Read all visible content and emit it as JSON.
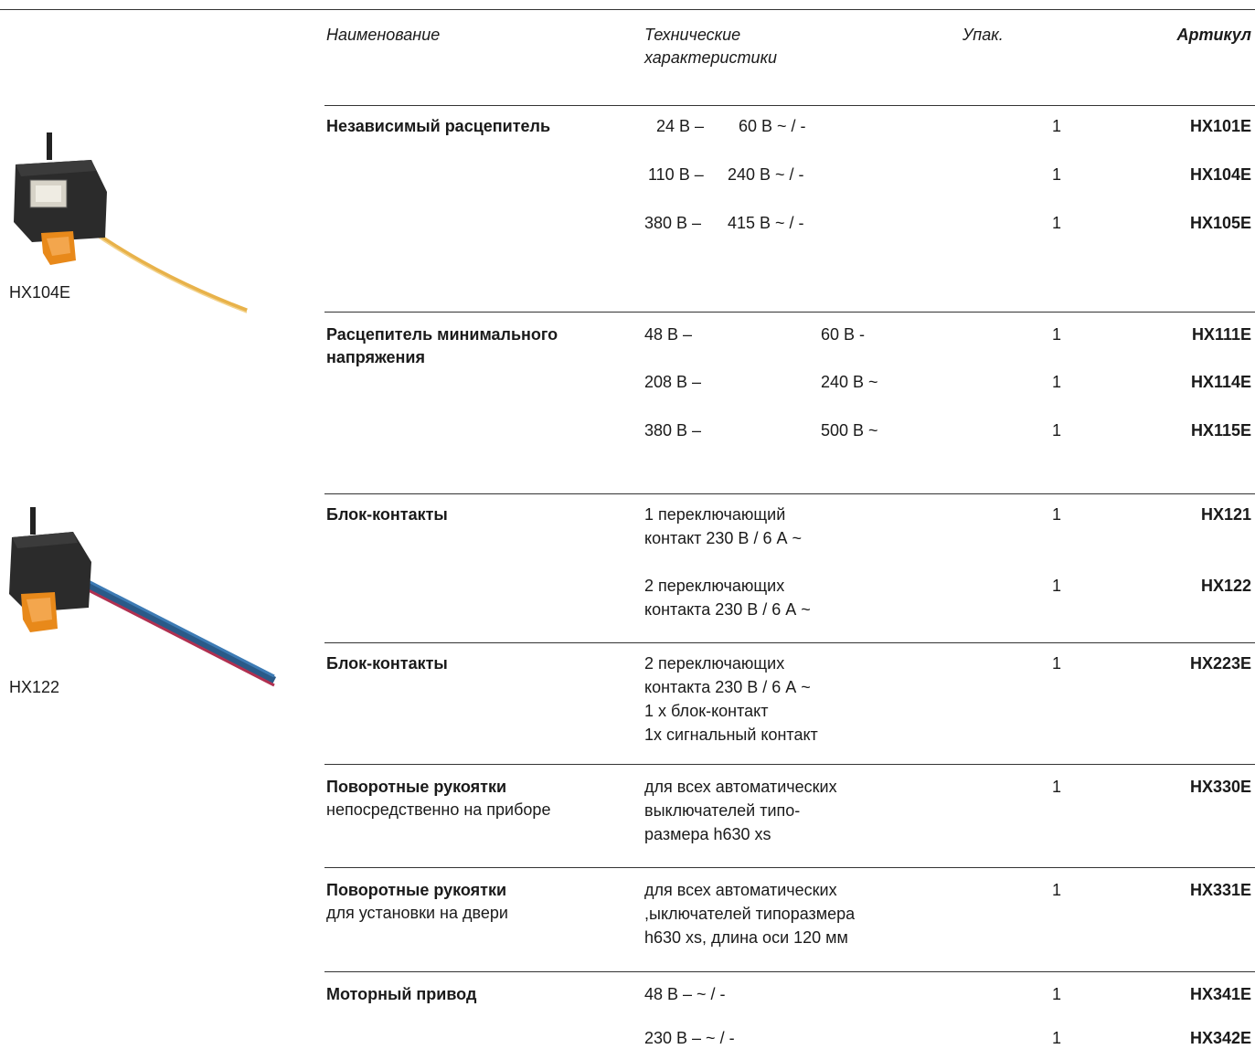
{
  "header": {
    "name": "Наименование",
    "tech_line1": "Технические",
    "tech_line2": "характеристики",
    "pack": "Упак.",
    "article": "Артикул"
  },
  "images": [
    {
      "caption": "HX104E"
    },
    {
      "caption": "HX122"
    }
  ],
  "groups": [
    {
      "name": "Независимый расцепитель",
      "rows": [
        {
          "a": "24 В –",
          "b": "60 В ~ / -",
          "pack": "1",
          "article": "HX101E"
        },
        {
          "a": "110 В –",
          "b": "240 В ~ / -",
          "pack": "1",
          "article": "HX104E"
        },
        {
          "a": "380 В –",
          "b": "415 В ~ / -",
          "pack": "1",
          "article": "HX105E"
        }
      ]
    },
    {
      "name_line1": "Расцепитель минимального",
      "name_line2": "напряжения",
      "rows": [
        {
          "a": "48 В –",
          "b": "60 В  -",
          "pack": "1",
          "article": "HX111E"
        },
        {
          "a": "208 В –",
          "b": "240 В ~",
          "pack": "1",
          "article": "HX114E"
        },
        {
          "a": "380 В –",
          "b": "500 В ~",
          "pack": "1",
          "article": "HX115E"
        }
      ]
    },
    {
      "name": "Блок-контакты",
      "rows": [
        {
          "l1": "1 переключающий",
          "l2": "контакт 230 В / 6 А ~",
          "pack": "1",
          "article": "HX121"
        },
        {
          "l1": "2 переключающих",
          "l2": "контакта 230 В / 6 А ~",
          "pack": "1",
          "article": "HX122"
        }
      ]
    },
    {
      "name": "Блок-контакты",
      "rows": [
        {
          "l1": "2 переключающих",
          "l2": "контакта 230 В / 6 А ~",
          "l3": "1 x блок-контакт",
          "l4": "1x сигнальный контакт",
          "pack": "1",
          "article": "HX223E"
        }
      ]
    },
    {
      "name": "Поворотные рукоятки",
      "sub": "непосредственно на приборе",
      "rows": [
        {
          "l1": "для всех автоматических",
          "l2": "выключателей типо-",
          "l3": "размера h630 xs",
          "pack": "1",
          "article": "HX330E"
        }
      ]
    },
    {
      "name": "Поворотные рукоятки",
      "sub": "для установки на двери",
      "rows": [
        {
          "l1": "для всех автоматических",
          "l2": ",ыключателей типоразмера",
          "l3": "h630 xs, длина оси 120 мм",
          "pack": "1",
          "article": "HX331E"
        }
      ]
    },
    {
      "name": "Моторный привод",
      "rows": [
        {
          "a": "48 В – ~ / -",
          "pack": "1",
          "article": "HX341E"
        },
        {
          "a": "230 В – ~ / -",
          "pack": "1",
          "article": "HX342E"
        }
      ]
    }
  ],
  "colors": {
    "text": "#1a1a1a",
    "rule": "#333333",
    "cable_yellow": "#e8b24a",
    "handle_orange": "#e8891a",
    "body_dark": "#2b2b2b"
  }
}
